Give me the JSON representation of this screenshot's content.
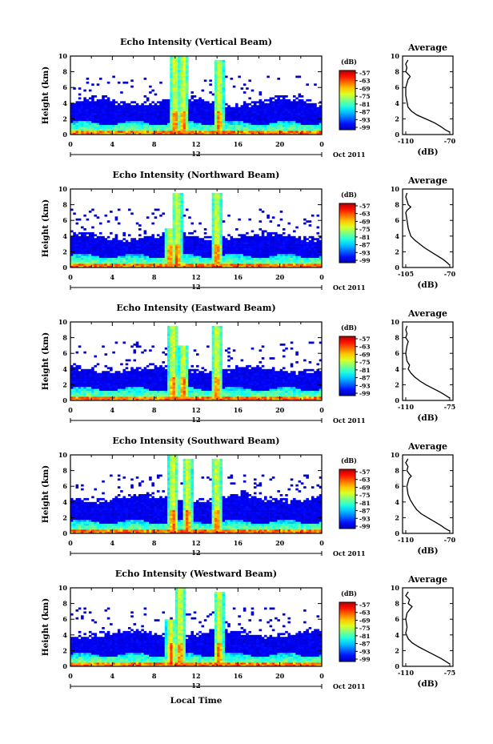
{
  "figure": {
    "x_label": "Local Time",
    "date_label": "Oct 2011",
    "panels": [
      {
        "title": "Echo Intensity (Vertical Beam)",
        "ylabel": "Height (km)",
        "x_ticks": [
          "0",
          "4",
          "8",
          "12",
          "16",
          "20",
          "0"
        ],
        "noon_label": "12",
        "avg_title": "Average",
        "avg_xlabel": "(dB)",
        "avg_x_ticks": [
          "-110",
          "-70"
        ],
        "cb_unit": "(dB)",
        "cb_ticks": [
          "-57",
          "-63",
          "-69",
          "-75",
          "-81",
          "-87",
          "-93",
          "-99"
        ]
      },
      {
        "title": "Echo Intensity (Northward Beam)",
        "ylabel": "Height (km)",
        "x_ticks": [
          "0",
          "4",
          "8",
          "12",
          "16",
          "20",
          "0"
        ],
        "noon_label": "12",
        "avg_title": "Average",
        "avg_xlabel": "(dB)",
        "avg_x_ticks": [
          "-105",
          "-70"
        ],
        "cb_unit": "(dB)",
        "cb_ticks": [
          "-57",
          "-63",
          "-69",
          "-75",
          "-81",
          "-87",
          "-93",
          "-99"
        ]
      },
      {
        "title": "Echo Intensity (Eastward Beam)",
        "ylabel": "Height (km)",
        "x_ticks": [
          "0",
          "4",
          "8",
          "12",
          "16",
          "20",
          "0"
        ],
        "noon_label": "12",
        "avg_title": "Average",
        "avg_xlabel": "(dB)",
        "avg_x_ticks": [
          "-110",
          "-75"
        ],
        "cb_unit": "(dB)",
        "cb_ticks": [
          "-57",
          "-63",
          "-69",
          "-75",
          "-81",
          "-87",
          "-93",
          "-99"
        ]
      },
      {
        "title": "Echo Intensity (Southward Beam)",
        "ylabel": "Height (km)",
        "x_ticks": [
          "0",
          "4",
          "8",
          "12",
          "16",
          "20",
          "0"
        ],
        "noon_label": "12",
        "avg_title": "Average",
        "avg_xlabel": "(dB)",
        "avg_x_ticks": [
          "-110",
          "-70"
        ],
        "cb_unit": "(dB)",
        "cb_ticks": [
          "-57",
          "-63",
          "-69",
          "-75",
          "-81",
          "-87",
          "-93",
          "-99"
        ]
      },
      {
        "title": "Echo Intensity (Westward Beam)",
        "ylabel": "Height (km)",
        "x_ticks": [
          "0",
          "4",
          "8",
          "12",
          "16",
          "20",
          "0"
        ],
        "noon_label": "12",
        "avg_title": "Average",
        "avg_xlabel": "(dB)",
        "avg_x_ticks": [
          "-110",
          "-75"
        ],
        "cb_unit": "(dB)",
        "cb_ticks": [
          "-57",
          "-63",
          "-69",
          "-75",
          "-81",
          "-87",
          "-93",
          "-99"
        ]
      }
    ]
  },
  "chart_data": [
    {
      "type": "heatmap",
      "title": "Echo Intensity (Vertical Beam)",
      "xlabel": "Local Time",
      "ylabel": "Height (km)",
      "x_range_hours": [
        0,
        24
      ],
      "ylim": [
        0,
        10
      ],
      "color_range_db": [
        -99,
        -57
      ],
      "colorbar_ticks": [
        -57,
        -63,
        -69,
        -75,
        -81,
        -87,
        -93,
        -99
      ],
      "features": {
        "background_top_km": 4.2,
        "surface_layer_top_km": 1.5,
        "convective_events": [
          {
            "time_h": 10.0,
            "top_km": 10
          },
          {
            "time_h": 10.8,
            "top_km": 10
          },
          {
            "time_h": 14.2,
            "top_km": 9.5
          }
        ]
      }
    },
    {
      "type": "heatmap",
      "title": "Echo Intensity (Northward Beam)",
      "xlabel": "Local Time",
      "ylabel": "Height (km)",
      "x_range_hours": [
        0,
        24
      ],
      "ylim": [
        0,
        10
      ],
      "color_range_db": [
        -99,
        -57
      ],
      "colorbar_ticks": [
        -57,
        -63,
        -69,
        -75,
        -81,
        -87,
        -93,
        -99
      ],
      "features": {
        "background_top_km": 4.0,
        "surface_layer_top_km": 1.5,
        "convective_events": [
          {
            "time_h": 9.5,
            "top_km": 5
          },
          {
            "time_h": 10.2,
            "top_km": 9.5
          },
          {
            "time_h": 14.0,
            "top_km": 9.5
          }
        ]
      }
    },
    {
      "type": "heatmap",
      "title": "Echo Intensity (Eastward Beam)",
      "xlabel": "Local Time",
      "ylabel": "Height (km)",
      "x_range_hours": [
        0,
        24
      ],
      "ylim": [
        0,
        10
      ],
      "color_range_db": [
        -99,
        -57
      ],
      "colorbar_ticks": [
        -57,
        -63,
        -69,
        -75,
        -81,
        -87,
        -93,
        -99
      ],
      "features": {
        "background_top_km": 4.0,
        "surface_layer_top_km": 1.5,
        "convective_events": [
          {
            "time_h": 9.8,
            "top_km": 9.5
          },
          {
            "time_h": 10.8,
            "top_km": 7
          },
          {
            "time_h": 14.0,
            "top_km": 9.5
          }
        ]
      }
    },
    {
      "type": "heatmap",
      "title": "Echo Intensity (Southward Beam)",
      "xlabel": "Local Time",
      "ylabel": "Height (km)",
      "x_range_hours": [
        0,
        24
      ],
      "ylim": [
        0,
        10
      ],
      "color_range_db": [
        -99,
        -57
      ],
      "colorbar_ticks": [
        -57,
        -63,
        -69,
        -75,
        -81,
        -87,
        -93,
        -99
      ],
      "features": {
        "background_top_km": 4.5,
        "surface_layer_top_km": 1.5,
        "convective_events": [
          {
            "time_h": 9.8,
            "top_km": 10
          },
          {
            "time_h": 11.2,
            "top_km": 9.5
          },
          {
            "time_h": 14.0,
            "top_km": 9.5
          }
        ]
      }
    },
    {
      "type": "heatmap",
      "title": "Echo Intensity (Westward Beam)",
      "xlabel": "Local Time",
      "ylabel": "Height (km)",
      "x_range_hours": [
        0,
        24
      ],
      "ylim": [
        0,
        10
      ],
      "color_range_db": [
        -99,
        -57
      ],
      "colorbar_ticks": [
        -57,
        -63,
        -69,
        -75,
        -81,
        -87,
        -93,
        -99
      ],
      "features": {
        "background_top_km": 4.2,
        "surface_layer_top_km": 1.5,
        "convective_events": [
          {
            "time_h": 9.6,
            "top_km": 6
          },
          {
            "time_h": 10.5,
            "top_km": 10
          },
          {
            "time_h": 14.2,
            "top_km": 9.5
          }
        ]
      }
    },
    {
      "type": "line",
      "title": "Average",
      "xlabel": "(dB)",
      "ylabel": "Height (km)",
      "xlim": [
        -110,
        -70
      ],
      "ylim": [
        0,
        10
      ],
      "x": [
        -108,
        -110,
        -109,
        -110,
        -108,
        -106,
        -108,
        -110,
        -110,
        -109,
        -108,
        -105,
        -100,
        -92,
        -84,
        -78,
        -74,
        -70
      ],
      "y": [
        9.5,
        9.0,
        8.5,
        8.0,
        7.7,
        7.4,
        7.0,
        6.0,
        5.0,
        4.2,
        3.5,
        3.0,
        2.5,
        2.0,
        1.5,
        1.0,
        0.6,
        0.3
      ]
    },
    {
      "type": "line",
      "title": "Average",
      "xlabel": "(dB)",
      "ylabel": "Height (km)",
      "xlim": [
        -105,
        -70
      ],
      "ylim": [
        0,
        10
      ],
      "x": [
        -104,
        -105,
        -104,
        -103,
        -101,
        -104,
        -105,
        -104,
        -103,
        -101,
        -98,
        -94,
        -90,
        -85,
        -80,
        -75,
        -72,
        -70
      ],
      "y": [
        9.5,
        9.0,
        8.5,
        8.0,
        7.7,
        7.3,
        7.0,
        6.0,
        5.0,
        4.0,
        3.5,
        3.0,
        2.5,
        2.0,
        1.5,
        1.0,
        0.6,
        0.3
      ]
    },
    {
      "type": "line",
      "title": "Average",
      "xlabel": "(dB)",
      "ylabel": "Height (km)",
      "xlim": [
        -110,
        -75
      ],
      "ylim": [
        0,
        10
      ],
      "x": [
        -109,
        -110,
        -109,
        -110,
        -108,
        -109,
        -110,
        -109,
        -107,
        -108,
        -106,
        -103,
        -99,
        -94,
        -88,
        -82,
        -78,
        -75
      ],
      "y": [
        9.5,
        9.0,
        8.5,
        8.0,
        7.5,
        7.0,
        6.0,
        5.0,
        4.5,
        4.0,
        3.5,
        3.0,
        2.5,
        2.0,
        1.5,
        1.0,
        0.6,
        0.3
      ]
    },
    {
      "type": "line",
      "title": "Average",
      "xlabel": "(dB)",
      "ylabel": "Height (km)",
      "xlim": [
        -110,
        -70
      ],
      "ylim": [
        0,
        10
      ],
      "x": [
        -108,
        -110,
        -108,
        -109,
        -107,
        -105,
        -107,
        -109,
        -108,
        -106,
        -103,
        -100,
        -96,
        -90,
        -84,
        -78,
        -74,
        -70
      ],
      "y": [
        9.5,
        9.0,
        8.5,
        8.0,
        7.6,
        7.3,
        7.0,
        6.0,
        5.0,
        4.3,
        3.6,
        3.0,
        2.5,
        2.0,
        1.5,
        1.0,
        0.6,
        0.3
      ]
    },
    {
      "type": "line",
      "title": "Average",
      "xlabel": "(dB)",
      "ylabel": "Height (km)",
      "xlim": [
        -110,
        -75
      ],
      "ylim": [
        0,
        10
      ],
      "x": [
        -108,
        -110,
        -107,
        -108,
        -105,
        -107,
        -109,
        -110,
        -109,
        -110,
        -108,
        -105,
        -100,
        -94,
        -88,
        -82,
        -78,
        -75
      ],
      "y": [
        9.5,
        9.0,
        8.5,
        8.0,
        7.6,
        7.2,
        6.8,
        6.0,
        5.0,
        4.2,
        3.5,
        3.0,
        2.5,
        2.0,
        1.5,
        1.0,
        0.6,
        0.3
      ]
    }
  ]
}
